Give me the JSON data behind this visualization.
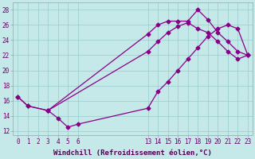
{
  "xlabel": "Windchill (Refroidissement éolien,°C)",
  "bg_color": "#c5e8e8",
  "line_color": "#880088",
  "grid_color": "#99cccc",
  "ylim": [
    11.5,
    29.0
  ],
  "xlim": [
    -0.5,
    23.5
  ],
  "yticks": [
    12,
    14,
    16,
    18,
    20,
    22,
    24,
    26,
    28
  ],
  "xticks": [
    0,
    1,
    2,
    3,
    4,
    5,
    6,
    13,
    14,
    15,
    16,
    17,
    18,
    19,
    20,
    21,
    22,
    23
  ],
  "line1_x": [
    0,
    1,
    3,
    4,
    5,
    6,
    13,
    14,
    15,
    16,
    17,
    18,
    19,
    20,
    21,
    22,
    23
  ],
  "line1_y": [
    16.5,
    15.3,
    14.7,
    13.7,
    12.5,
    12.9,
    15.0,
    17.2,
    18.5,
    20.0,
    21.5,
    23.0,
    24.5,
    25.5,
    26.0,
    25.5,
    22.0
  ],
  "line2_x": [
    0,
    1,
    3,
    13,
    14,
    15,
    16,
    17,
    18,
    19,
    20,
    21,
    22,
    23
  ],
  "line2_y": [
    16.5,
    15.3,
    14.7,
    24.8,
    26.0,
    26.5,
    26.5,
    26.5,
    28.0,
    26.7,
    25.0,
    23.8,
    22.5,
    22.0
  ],
  "line3_x": [
    3,
    13,
    14,
    15,
    16,
    17,
    18,
    19,
    20,
    21,
    22,
    23
  ],
  "line3_y": [
    14.7,
    22.5,
    23.8,
    25.0,
    25.8,
    26.3,
    25.5,
    25.0,
    23.8,
    22.5,
    21.5,
    22.0
  ],
  "tick_fontsize": 5.5,
  "xlabel_fontsize": 6.5,
  "tick_color": "#660066",
  "xlabel_color": "#550055"
}
